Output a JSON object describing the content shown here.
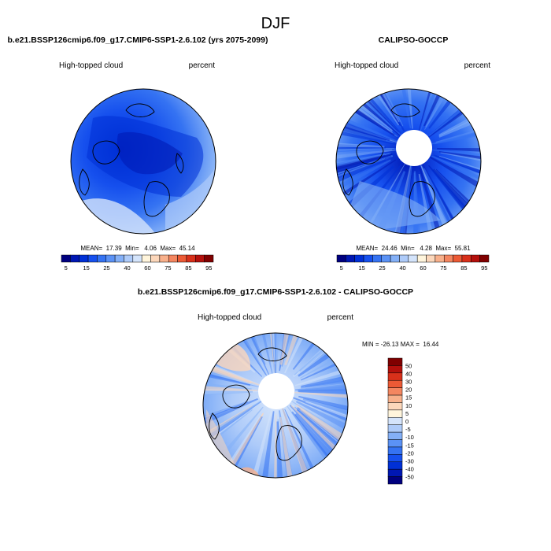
{
  "figure": {
    "title": "DJF"
  },
  "colors": {
    "seq": [
      "#00007f",
      "#0017b3",
      "#0030d6",
      "#1650ee",
      "#3573f2",
      "#5b92f5",
      "#84b0f7",
      "#aecbf9",
      "#d4e4fb",
      "#fff5dc",
      "#fcd7bb",
      "#f8b08b",
      "#f48660",
      "#ec5a35",
      "#d8301a",
      "#b4100c",
      "#800000"
    ],
    "div": [
      "#00007f",
      "#0017b3",
      "#0030d6",
      "#1650ee",
      "#3573f2",
      "#5b92f5",
      "#84b0f7",
      "#aecbf9",
      "#d4e4fb",
      "#fff5dc",
      "#fcd7bb",
      "#f8b08b",
      "#f48660",
      "#ec5a35",
      "#d8301a",
      "#b4100c",
      "#800000"
    ]
  },
  "chart_data": [
    {
      "type": "heatmap",
      "panel": "model",
      "title": "b.e21.BSSP126cmip6.f09_g17.CMIP6-SSP1-2.6.102 (yrs 2075-2099)",
      "left_label": "High-topped cloud",
      "right_label": "percent",
      "stats_text": "MEAN=  17.39  Min=   4.06  Max=  45.14",
      "stats": {
        "mean": 17.39,
        "min": 4.06,
        "max": 45.14
      },
      "projection": "north polar stereographic",
      "colorbar": {
        "orientation": "horizontal",
        "labels": [
          "5",
          "15",
          "25",
          "40",
          "60",
          "75",
          "85",
          "95"
        ]
      }
    },
    {
      "type": "heatmap",
      "panel": "obs",
      "title": "CALIPSO-GOCCP",
      "left_label": "High-topped cloud",
      "right_label": "percent",
      "stats_text": "MEAN=  24.46  Min=   4.28  Max=  55.81",
      "stats": {
        "mean": 24.46,
        "min": 4.28,
        "max": 55.81
      },
      "projection": "north polar stereographic",
      "colorbar": {
        "orientation": "horizontal",
        "labels": [
          "5",
          "15",
          "25",
          "40",
          "60",
          "75",
          "85",
          "95"
        ]
      }
    },
    {
      "type": "heatmap",
      "panel": "diff",
      "title": "b.e21.BSSP126cmip6.f09_g17.CMIP6-SSP1-2.6.102 - CALIPSO-GOCCP",
      "left_label": "High-topped cloud",
      "right_label": "percent",
      "stats_text": "MIN = -26.13 MAX =  16.44",
      "stats": {
        "min": -26.13,
        "max": 16.44
      },
      "projection": "north polar stereographic",
      "colorbar": {
        "orientation": "vertical",
        "labels": [
          "50",
          "40",
          "30",
          "20",
          "15",
          "10",
          "5",
          "0",
          "-5",
          "-10",
          "-15",
          "-20",
          "-30",
          "-40",
          "-50"
        ]
      }
    }
  ]
}
